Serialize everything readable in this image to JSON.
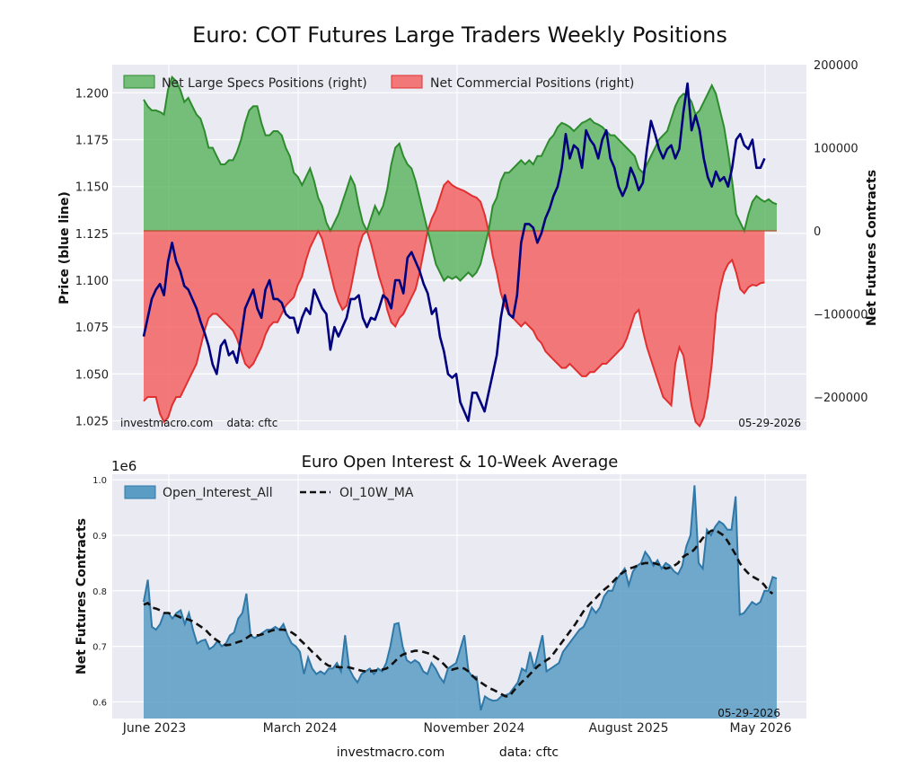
{
  "title": "Euro: COT Futures Large Traders Weekly Positions",
  "footer": {
    "site": "investmacro.com",
    "data": "data: cftc"
  },
  "colors": {
    "price": "#00007f",
    "specs_fill": "#4caf50",
    "specs_line": "#2e8b2e",
    "comm_fill": "#f45a5a",
    "comm_line": "#e03030",
    "oi_fill": "#5b9cc4",
    "oi_line": "#2f78a8",
    "plot_bg": "#eaeaf2"
  },
  "chart_data": [
    {
      "type": "area",
      "title": "Euro: COT Futures Large Traders Weekly Positions",
      "ylabel_left": "Price (blue line)",
      "ylabel_right": "Net Futures Contracts",
      "ylim_left": [
        1.02,
        1.215
      ],
      "ylim_right": [
        -240000,
        200000
      ],
      "yticks_left": [
        "1.025",
        "1.050",
        "1.075",
        "1.100",
        "1.125",
        "1.150",
        "1.175",
        "1.200"
      ],
      "yticks_right": [
        "−200000",
        "−100000",
        "0",
        "100000",
        "200000"
      ],
      "legend_position": "top-left",
      "grid": true,
      "annotation_left": "investmacro.com    data: cftc",
      "annotation_right": "05-29-2026",
      "series": [
        {
          "name": "Net Large Specs Positions (right)",
          "axis": "right",
          "values": [
            158000,
            150000,
            145000,
            145000,
            143000,
            140000,
            170000,
            185000,
            180000,
            170000,
            155000,
            160000,
            150000,
            140000,
            135000,
            120000,
            100000,
            100000,
            90000,
            80000,
            80000,
            85000,
            85000,
            95000,
            110000,
            130000,
            145000,
            150000,
            150000,
            130000,
            115000,
            115000,
            120000,
            120000,
            115000,
            100000,
            90000,
            70000,
            65000,
            55000,
            65000,
            75000,
            60000,
            40000,
            30000,
            10000,
            0,
            10000,
            20000,
            35000,
            50000,
            65000,
            55000,
            30000,
            10000,
            0,
            15000,
            30000,
            20000,
            30000,
            50000,
            80000,
            100000,
            105000,
            90000,
            80000,
            75000,
            60000,
            40000,
            20000,
            0,
            -20000,
            -40000,
            -50000,
            -60000,
            -55000,
            -58000,
            -55000,
            -60000,
            -55000,
            -50000,
            -55000,
            -50000,
            -40000,
            -20000,
            0,
            30000,
            40000,
            60000,
            70000,
            70000,
            75000,
            80000,
            85000,
            80000,
            85000,
            80000,
            90000,
            90000,
            100000,
            110000,
            115000,
            125000,
            130000,
            128000,
            125000,
            120000,
            125000,
            130000,
            132000,
            135000,
            130000,
            128000,
            125000,
            120000,
            115000,
            115000,
            110000,
            105000,
            100000,
            95000,
            90000,
            75000,
            70000,
            80000,
            90000,
            100000,
            110000,
            115000,
            120000,
            135000,
            150000,
            160000,
            165000,
            163000,
            155000,
            140000,
            145000,
            155000,
            165000,
            175000,
            165000,
            145000,
            125000,
            95000,
            60000,
            20000,
            10000,
            0,
            20000,
            35000,
            42000,
            38000,
            35000,
            38000,
            34000,
            32000
          ]
        },
        {
          "name": "Net Commercial Positions (right)",
          "axis": "right",
          "values": [
            -205000,
            -200000,
            -200000,
            -200000,
            -220000,
            -230000,
            -225000,
            -210000,
            -200000,
            -200000,
            -190000,
            -180000,
            -170000,
            -160000,
            -140000,
            -120000,
            -105000,
            -100000,
            -100000,
            -105000,
            -110000,
            -115000,
            -120000,
            -130000,
            -145000,
            -160000,
            -165000,
            -160000,
            -150000,
            -140000,
            -125000,
            -115000,
            -110000,
            -110000,
            -100000,
            -90000,
            -85000,
            -80000,
            -65000,
            -55000,
            -35000,
            -20000,
            -10000,
            0,
            -10000,
            -30000,
            -50000,
            -70000,
            -85000,
            -95000,
            -90000,
            -70000,
            -45000,
            -20000,
            -5000,
            0,
            -15000,
            -35000,
            -55000,
            -70000,
            -95000,
            -110000,
            -115000,
            -105000,
            -100000,
            -90000,
            -80000,
            -70000,
            -50000,
            -25000,
            0,
            15000,
            25000,
            40000,
            55000,
            60000,
            55000,
            52000,
            50000,
            48000,
            45000,
            42000,
            40000,
            35000,
            20000,
            0,
            -30000,
            -50000,
            -75000,
            -90000,
            -100000,
            -105000,
            -110000,
            -115000,
            -110000,
            -115000,
            -120000,
            -130000,
            -135000,
            -145000,
            -150000,
            -155000,
            -160000,
            -165000,
            -165000,
            -160000,
            -165000,
            -170000,
            -175000,
            -175000,
            -170000,
            -170000,
            -165000,
            -160000,
            -160000,
            -155000,
            -150000,
            -145000,
            -140000,
            -130000,
            -115000,
            -100000,
            -95000,
            -120000,
            -140000,
            -155000,
            -170000,
            -185000,
            -200000,
            -205000,
            -210000,
            -160000,
            -140000,
            -150000,
            -180000,
            -210000,
            -230000,
            -235000,
            -225000,
            -200000,
            -160000,
            -100000,
            -70000,
            -50000,
            -40000,
            -35000,
            -50000,
            -70000,
            -75000,
            -68000,
            -65000,
            -66000,
            -63000,
            -62000
          ]
        },
        {
          "name": "Price",
          "axis": "left",
          "values": [
            1.07,
            1.08,
            1.09,
            1.095,
            1.098,
            1.092,
            1.11,
            1.12,
            1.11,
            1.105,
            1.097,
            1.095,
            1.09,
            1.085,
            1.078,
            1.072,
            1.065,
            1.055,
            1.05,
            1.065,
            1.068,
            1.06,
            1.062,
            1.056,
            1.07,
            1.085,
            1.09,
            1.095,
            1.085,
            1.08,
            1.095,
            1.1,
            1.09,
            1.09,
            1.088,
            1.082,
            1.08,
            1.08,
            1.072,
            1.08,
            1.085,
            1.082,
            1.095,
            1.09,
            1.085,
            1.082,
            1.063,
            1.075,
            1.07,
            1.075,
            1.08,
            1.09,
            1.09,
            1.092,
            1.08,
            1.075,
            1.08,
            1.079,
            1.085,
            1.092,
            1.09,
            1.085,
            1.1,
            1.1,
            1.093,
            1.112,
            1.115,
            1.11,
            1.105,
            1.098,
            1.093,
            1.082,
            1.085,
            1.07,
            1.062,
            1.05,
            1.048,
            1.05,
            1.035,
            1.03,
            1.025,
            1.04,
            1.04,
            1.035,
            1.03,
            1.04,
            1.05,
            1.06,
            1.08,
            1.092,
            1.082,
            1.08,
            1.092,
            1.12,
            1.13,
            1.13,
            1.128,
            1.12,
            1.125,
            1.133,
            1.138,
            1.145,
            1.15,
            1.16,
            1.178,
            1.165,
            1.172,
            1.17,
            1.16,
            1.18,
            1.175,
            1.172,
            1.165,
            1.175,
            1.18,
            1.165,
            1.16,
            1.15,
            1.145,
            1.15,
            1.16,
            1.155,
            1.148,
            1.152,
            1.17,
            1.185,
            1.178,
            1.17,
            1.165,
            1.17,
            1.172,
            1.165,
            1.17,
            1.19,
            1.205,
            1.18,
            1.188,
            1.18,
            1.165,
            1.155,
            1.15,
            1.158,
            1.153,
            1.155,
            1.15,
            1.16,
            1.175,
            1.178,
            1.172,
            1.17,
            1.175,
            1.16,
            1.16,
            1.165
          ]
        }
      ]
    },
    {
      "type": "area",
      "title": "Euro Open Interest & 10-Week Average",
      "ylabel": "Net Futures Contracts",
      "scale_label": "1e6",
      "ylim": [
        0.57,
        1.01
      ],
      "yticks": [
        "0.6",
        "0.7",
        "0.8",
        "0.9",
        "1.0"
      ],
      "x_tick_labels": [
        "June 2023",
        "March 2024",
        "November 2024",
        "August 2025",
        "May 2026"
      ],
      "legend_position": "top-left",
      "grid": true,
      "annotation_right": "05-29-2026",
      "series": [
        {
          "name": "Open_Interest_All",
          "values": [
            0.78,
            0.82,
            0.735,
            0.73,
            0.74,
            0.76,
            0.76,
            0.75,
            0.76,
            0.765,
            0.74,
            0.76,
            0.73,
            0.705,
            0.71,
            0.712,
            0.695,
            0.7,
            0.71,
            0.7,
            0.705,
            0.72,
            0.725,
            0.75,
            0.76,
            0.795,
            0.72,
            0.715,
            0.72,
            0.725,
            0.73,
            0.73,
            0.735,
            0.73,
            0.74,
            0.72,
            0.705,
            0.7,
            0.69,
            0.65,
            0.68,
            0.66,
            0.65,
            0.655,
            0.65,
            0.66,
            0.66,
            0.67,
            0.655,
            0.72,
            0.66,
            0.645,
            0.635,
            0.65,
            0.655,
            0.66,
            0.65,
            0.66,
            0.655,
            0.67,
            0.7,
            0.74,
            0.742,
            0.7,
            0.675,
            0.67,
            0.675,
            0.67,
            0.655,
            0.65,
            0.67,
            0.66,
            0.645,
            0.635,
            0.66,
            0.665,
            0.67,
            0.695,
            0.72,
            0.655,
            0.645,
            0.645,
            0.585,
            0.61,
            0.605,
            0.602,
            0.603,
            0.61,
            0.612,
            0.615,
            0.625,
            0.635,
            0.66,
            0.655,
            0.69,
            0.66,
            0.69,
            0.72,
            0.655,
            0.66,
            0.665,
            0.67,
            0.69,
            0.7,
            0.71,
            0.72,
            0.73,
            0.735,
            0.75,
            0.77,
            0.76,
            0.77,
            0.79,
            0.8,
            0.8,
            0.82,
            0.83,
            0.84,
            0.81,
            0.835,
            0.845,
            0.85,
            0.87,
            0.86,
            0.845,
            0.855,
            0.84,
            0.85,
            0.845,
            0.835,
            0.83,
            0.845,
            0.88,
            0.9,
            0.99,
            0.85,
            0.84,
            0.91,
            0.9,
            0.915,
            0.925,
            0.92,
            0.91,
            0.91,
            0.97,
            0.757,
            0.76,
            0.77,
            0.78,
            0.775,
            0.78,
            0.8,
            0.8,
            0.825,
            0.822
          ]
        },
        {
          "name": "OI_10W_MA",
          "values": [
            0.775,
            0.778,
            0.77,
            0.768,
            0.765,
            0.76,
            0.76,
            0.758,
            0.755,
            0.752,
            0.75,
            0.748,
            0.745,
            0.74,
            0.735,
            0.73,
            0.722,
            0.715,
            0.71,
            0.705,
            0.702,
            0.703,
            0.705,
            0.708,
            0.71,
            0.715,
            0.72,
            0.72,
            0.72,
            0.722,
            0.725,
            0.728,
            0.73,
            0.73,
            0.73,
            0.728,
            0.725,
            0.72,
            0.712,
            0.705,
            0.698,
            0.69,
            0.684,
            0.676,
            0.67,
            0.665,
            0.664,
            0.663,
            0.662,
            0.663,
            0.662,
            0.66,
            0.658,
            0.656,
            0.655,
            0.655,
            0.656,
            0.657,
            0.658,
            0.66,
            0.665,
            0.672,
            0.68,
            0.685,
            0.688,
            0.69,
            0.692,
            0.692,
            0.69,
            0.688,
            0.685,
            0.68,
            0.675,
            0.668,
            0.66,
            0.658,
            0.66,
            0.662,
            0.66,
            0.655,
            0.647,
            0.64,
            0.635,
            0.63,
            0.625,
            0.622,
            0.618,
            0.614,
            0.61,
            0.61,
            0.62,
            0.628,
            0.636,
            0.642,
            0.65,
            0.658,
            0.665,
            0.67,
            0.675,
            0.68,
            0.69,
            0.7,
            0.71,
            0.72,
            0.73,
            0.74,
            0.752,
            0.763,
            0.772,
            0.78,
            0.787,
            0.795,
            0.802,
            0.808,
            0.815,
            0.823,
            0.83,
            0.835,
            0.84,
            0.842,
            0.845,
            0.848,
            0.85,
            0.85,
            0.85,
            0.848,
            0.845,
            0.84,
            0.842,
            0.845,
            0.85,
            0.86,
            0.865,
            0.868,
            0.875,
            0.885,
            0.895,
            0.902,
            0.908,
            0.91,
            0.905,
            0.9,
            0.89,
            0.878,
            0.865,
            0.85,
            0.84,
            0.832,
            0.826,
            0.822,
            0.818,
            0.81,
            0.8,
            0.795
          ]
        }
      ]
    }
  ]
}
